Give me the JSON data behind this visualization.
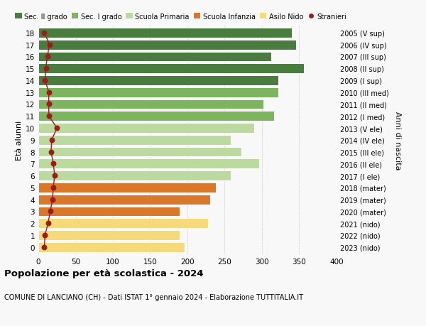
{
  "ages": [
    18,
    17,
    16,
    15,
    14,
    13,
    12,
    11,
    10,
    9,
    8,
    7,
    6,
    5,
    4,
    3,
    2,
    1,
    0
  ],
  "bar_values": [
    340,
    346,
    312,
    356,
    322,
    322,
    302,
    316,
    290,
    258,
    272,
    296,
    258,
    238,
    230,
    190,
    228,
    190,
    196
  ],
  "stranieri": [
    8,
    15,
    12,
    10,
    9,
    14,
    14,
    14,
    25,
    18,
    17,
    20,
    22,
    20,
    19,
    16,
    13,
    9,
    8
  ],
  "bar_colors": [
    "#4a7c3f",
    "#4a7c3f",
    "#4a7c3f",
    "#4a7c3f",
    "#4a7c3f",
    "#7db55e",
    "#7db55e",
    "#7db55e",
    "#bcd9a0",
    "#bcd9a0",
    "#bcd9a0",
    "#bcd9a0",
    "#bcd9a0",
    "#d9782a",
    "#d9782a",
    "#d9782a",
    "#f5d97a",
    "#f5d97a",
    "#f5d97a"
  ],
  "right_labels": [
    "2005 (V sup)",
    "2006 (IV sup)",
    "2007 (III sup)",
    "2008 (II sup)",
    "2009 (I sup)",
    "2010 (III med)",
    "2011 (II med)",
    "2012 (I med)",
    "2013 (V ele)",
    "2014 (IV ele)",
    "2015 (III ele)",
    "2016 (II ele)",
    "2017 (I ele)",
    "2018 (mater)",
    "2019 (mater)",
    "2020 (mater)",
    "2021 (nido)",
    "2022 (nido)",
    "2023 (nido)"
  ],
  "legend_labels": [
    "Sec. II grado",
    "Sec. I grado",
    "Scuola Primaria",
    "Scuola Infanzia",
    "Asilo Nido",
    "Stranieri"
  ],
  "legend_colors": [
    "#4a7c3f",
    "#7db55e",
    "#bcd9a0",
    "#d9782a",
    "#f5d97a",
    "#9b1c1c"
  ],
  "ylabel_left": "Età alunni",
  "ylabel_right": "Anni di nascita",
  "title": "Popolazione per età scolastica - 2024",
  "subtitle": "COMUNE DI LANCIANO (CH) - Dati ISTAT 1° gennaio 2024 - Elaborazione TUTTITALIA.IT",
  "xlim": [
    0,
    400
  ],
  "xticks": [
    0,
    50,
    100,
    150,
    200,
    250,
    300,
    350,
    400
  ],
  "bg_color": "#f8f8f8",
  "grid_color": "#cccccc",
  "stranieri_color": "#9b1c1c",
  "stranieri_line_color": "#9b1c1c"
}
